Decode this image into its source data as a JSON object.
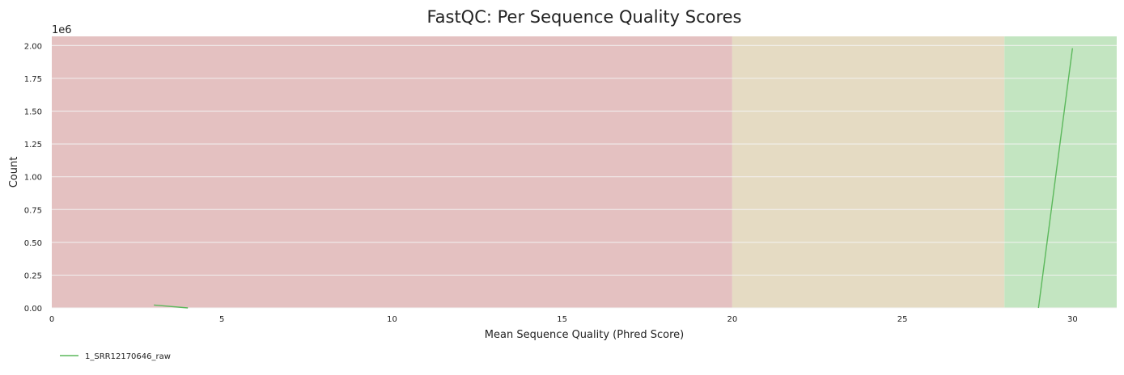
{
  "chart_data": {
    "type": "line",
    "title": "FastQC: Per Sequence Quality Scores",
    "xlabel": "Mean Sequence Quality (Phred Score)",
    "ylabel": "Count",
    "y_offset_label": "1e6",
    "xlim": [
      0,
      31.3
    ],
    "ylim": [
      0,
      2070000
    ],
    "x_ticks": [
      0,
      5,
      10,
      15,
      20,
      25,
      30
    ],
    "x_tick_labels": [
      "0",
      "5",
      "10",
      "15",
      "20",
      "25",
      "30"
    ],
    "y_ticks": [
      0,
      250000,
      500000,
      750000,
      1000000,
      1250000,
      1500000,
      1750000,
      2000000
    ],
    "y_tick_labels": [
      "0.00",
      "0.25",
      "0.50",
      "0.75",
      "1.00",
      "1.25",
      "1.50",
      "1.75",
      "2.00"
    ],
    "grid": true,
    "legend_position": "bottom-left",
    "bands": [
      {
        "from": 0,
        "to": 20,
        "color": "#e4c1c1"
      },
      {
        "from": 20,
        "to": 28,
        "color": "#e5dbc3"
      },
      {
        "from": 28,
        "to": 31.3,
        "color": "#c3e5c1"
      }
    ],
    "series": [
      {
        "name": "1_SRR12170646_raw",
        "color": "#5cb85c",
        "segments": [
          {
            "x": [
              3,
              4
            ],
            "y": [
              22000,
              0
            ]
          },
          {
            "x": [
              29,
              30
            ],
            "y": [
              0,
              1980000
            ]
          }
        ]
      }
    ]
  }
}
